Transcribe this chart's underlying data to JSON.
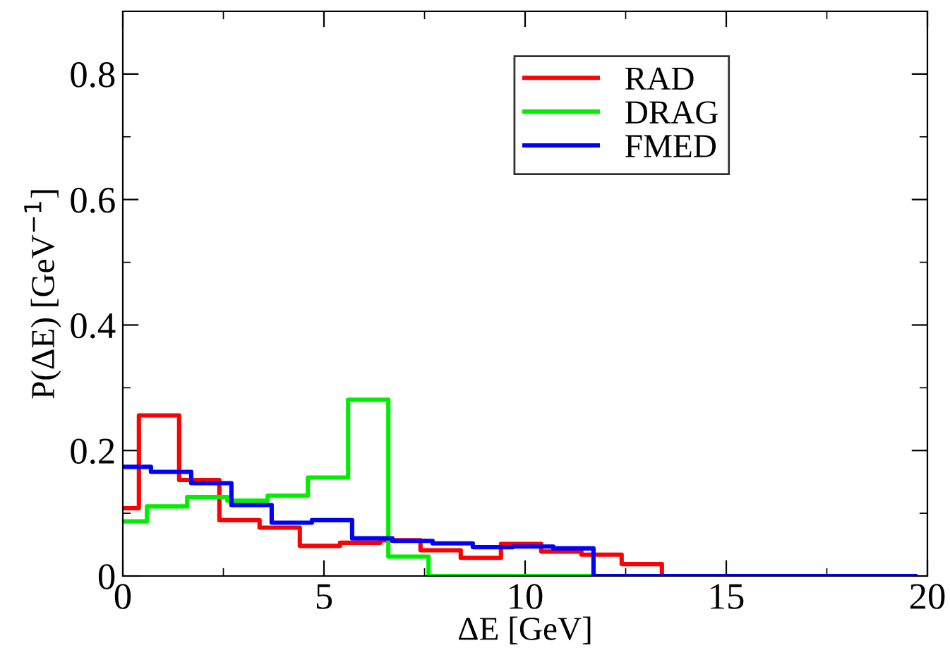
{
  "chart_data": {
    "type": "step",
    "xlabel": "ΔE [GeV]",
    "ylabel": "P(ΔE) [GeV$^{−1}$]",
    "xlim": [
      0,
      20
    ],
    "ylim": [
      0,
      0.9
    ],
    "xticks": [
      0,
      5,
      10,
      15,
      20
    ],
    "yticks": [
      0,
      0.2,
      0.4,
      0.6,
      0.8
    ],
    "grid": false,
    "legend": "top",
    "line_style": "solid",
    "marker": "none",
    "series": [
      {
        "name": "RAD",
        "color": "#ff0000",
        "x": [
          0,
          0.4,
          1.4,
          2.4,
          3.4,
          4.4,
          5.4,
          6.4,
          7.4,
          8.4,
          9.4,
          10.4,
          11.4,
          12.4,
          13.4,
          19.7
        ],
        "values": [
          0.108,
          0.256,
          0.153,
          0.089,
          0.077,
          0.048,
          0.053,
          0.057,
          0.041,
          0.029,
          0.051,
          0.039,
          0.034,
          0.019,
          0,
          0
        ]
      },
      {
        "name": "DRAG",
        "color": "#00ee00",
        "x": [
          0,
          0.6,
          1.6,
          2.6,
          3.6,
          4.6,
          5.6,
          6.6,
          7.6,
          19.7
        ],
        "values": [
          0.087,
          0.111,
          0.126,
          0.12,
          0.128,
          0.157,
          0.281,
          0.031,
          0,
          0
        ]
      },
      {
        "name": "FMED",
        "color": "#0000ff",
        "x": [
          0,
          0.7,
          1.7,
          2.7,
          3.7,
          4.7,
          5.7,
          6.7,
          7.7,
          8.7,
          9.7,
          10.7,
          11.7,
          19.7
        ],
        "values": [
          0.174,
          0.166,
          0.148,
          0.113,
          0.085,
          0.089,
          0.06,
          0.056,
          0.052,
          0.046,
          0.047,
          0.044,
          0,
          0
        ]
      }
    ]
  }
}
